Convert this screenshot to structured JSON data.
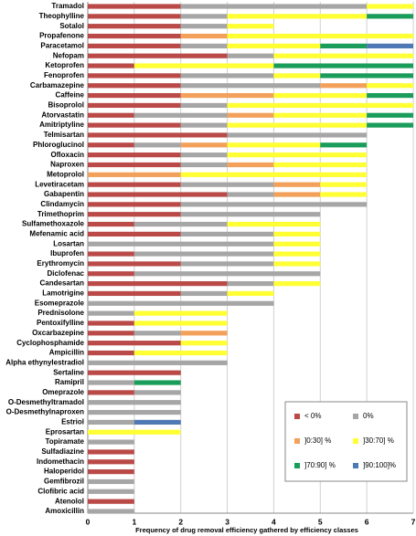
{
  "chart_data": {
    "type": "stacked-bar-horizontal",
    "x_label": "Frequency of drug removal efficiency gathered by efficiency classes",
    "categories": [
      "Tramadol",
      "Theophylline",
      "Sotalol",
      "Propafenone",
      "Paracetamol",
      "Nefopam",
      "Ketoprofen",
      "Fenoprofen",
      "Carbamazepine",
      "Caffeine",
      "Bisoprolol",
      "Atorvastatin",
      "Amitriptyline",
      "Telmisartan",
      "Phloroglucinol",
      "Ofloxacin",
      "Naproxen",
      "Metoprolol",
      "Levetiracetam",
      "Gabapentin",
      "Clindamycin",
      "Trimethoprim",
      "Sulfamethoxazole",
      "Mefenamic acid",
      "Losartan",
      "Ibuprofen",
      "Erythromycin",
      "Diclofenac",
      "Candesartan",
      "Lamotrigine",
      "Esomeprazole",
      "Prednisolone",
      "Pentoxifylline",
      "Oxcarbazepine",
      "Cyclophosphamide",
      "Ampicillin",
      "Alpha ethynylestradiol",
      "Sertaline",
      "Ramipril",
      "Omeprazole",
      "O-Desmethyltramadol",
      "O-Desmethylnaproxen",
      "Estriol",
      "Eprosartan",
      "Topiramate",
      "Sulfadiazine",
      "Indomethacin",
      "Haloperidol",
      "Gemfibrozil",
      "Clofibric acid",
      "Atenolol",
      "Amoxicillin"
    ],
    "series": [
      {
        "name": "< 0%",
        "color": "#b94a48",
        "values": [
          2,
          2,
          2,
          2,
          2,
          3,
          1,
          2,
          2,
          2,
          2,
          1,
          2,
          3,
          1,
          2,
          2,
          0,
          2,
          3,
          2,
          2,
          1,
          2,
          0,
          1,
          2,
          1,
          3,
          2,
          0,
          0,
          1,
          1,
          2,
          1,
          0,
          2,
          0,
          1,
          0,
          0,
          0,
          0,
          0,
          1,
          1,
          1,
          0,
          0,
          1,
          0
        ]
      },
      {
        "name": "0%",
        "color": "#a6a6a6",
        "values": [
          4,
          1,
          1,
          0,
          1,
          1,
          0,
          2,
          3,
          0,
          1,
          2,
          1,
          3,
          1,
          1,
          1,
          0,
          2,
          1,
          4,
          3,
          2,
          2,
          4,
          3,
          2,
          4,
          1,
          1,
          4,
          1,
          0,
          1,
          0,
          0,
          3,
          0,
          1,
          1,
          2,
          2,
          1,
          0,
          1,
          0,
          0,
          0,
          1,
          1,
          0,
          1
        ]
      },
      {
        "name": "]0:30] %",
        "color": "#f2a05a",
        "values": [
          0,
          0,
          0,
          1,
          0,
          0,
          0,
          0,
          1,
          2,
          0,
          1,
          0,
          0,
          1,
          0,
          1,
          2,
          1,
          1,
          0,
          0,
          0,
          0,
          0,
          0,
          0,
          0,
          0,
          0,
          0,
          0,
          0,
          1,
          0,
          0,
          0,
          0,
          0,
          0,
          0,
          0,
          0,
          0,
          0,
          0,
          0,
          0,
          0,
          0,
          0,
          0
        ]
      },
      {
        "name": "]30:70] %",
        "color": "#ffff33",
        "values": [
          1,
          3,
          1,
          4,
          2,
          3,
          3,
          1,
          1,
          2,
          4,
          2,
          3,
          0,
          2,
          3,
          2,
          4,
          1,
          1,
          0,
          0,
          2,
          1,
          1,
          1,
          1,
          0,
          1,
          1,
          0,
          2,
          2,
          0,
          1,
          2,
          0,
          0,
          0,
          0,
          0,
          0,
          0,
          2,
          0,
          0,
          0,
          0,
          0,
          0,
          0,
          0
        ]
      },
      {
        "name": "]70:90]  %",
        "color": "#1a9c5a",
        "values": [
          0,
          1,
          0,
          0,
          1,
          0,
          3,
          2,
          0,
          1,
          0,
          1,
          1,
          0,
          1,
          0,
          0,
          0,
          0,
          0,
          0,
          0,
          0,
          0,
          0,
          0,
          0,
          0,
          0,
          0,
          0,
          0,
          0,
          0,
          0,
          0,
          0,
          0,
          1,
          0,
          0,
          0,
          0,
          0,
          0,
          0,
          0,
          0,
          0,
          0,
          0,
          0
        ]
      },
      {
        "name": "]90:100]%",
        "color": "#4f79b5",
        "values": [
          0,
          0,
          0,
          0,
          1,
          0,
          0,
          0,
          0,
          0,
          0,
          0,
          0,
          0,
          0,
          0,
          0,
          0,
          0,
          0,
          0,
          0,
          0,
          0,
          0,
          0,
          0,
          0,
          0,
          0,
          0,
          0,
          0,
          0,
          0,
          0,
          0,
          0,
          0,
          0,
          0,
          0,
          1,
          0,
          0,
          0,
          0,
          0,
          0,
          0,
          0,
          0
        ]
      }
    ],
    "xlim": [
      0,
      7
    ],
    "xticks": [
      0,
      1,
      2,
      3,
      4,
      5,
      6,
      7
    ],
    "grid": true,
    "legend": "lower-right"
  }
}
